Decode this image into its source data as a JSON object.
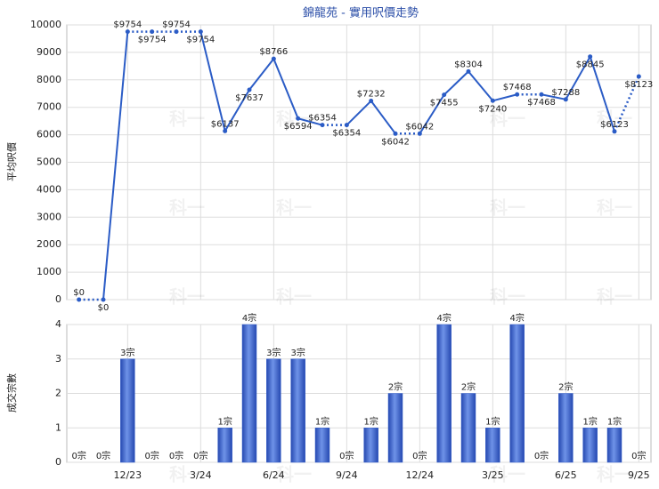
{
  "chart_data": [
    {
      "type": "line",
      "title": "錦龍苑 - 實用呎價走勢",
      "y_label": "平均呎價",
      "color": "#2b5cc6",
      "values": [
        0,
        0,
        9754,
        9754,
        9754,
        9754,
        6137,
        7637,
        8766,
        6594,
        6354,
        6354,
        7232,
        6042,
        6042,
        7455,
        8304,
        7240,
        7468,
        7468,
        7288,
        8845,
        6123,
        8123
      ],
      "value_labels": [
        "$0",
        "$0",
        "$9754",
        "$9754",
        "$9754",
        "$9754",
        "$6137",
        "$7637",
        "$8766",
        "$6594",
        "$6354",
        "$6354",
        "$7232",
        "$6042",
        "$6042",
        "$7455",
        "$8304",
        "$7240",
        "$7468",
        "$7468",
        "$7288",
        "$8845",
        "$6123",
        "$8123"
      ],
      "ylim": [
        0,
        10000
      ],
      "yticks": [
        0,
        1000,
        2000,
        3000,
        4000,
        5000,
        6000,
        7000,
        8000,
        9000,
        10000
      ],
      "grid": true,
      "watermark": "科一"
    },
    {
      "type": "bar",
      "y_label": "成交宗數",
      "color": "#3560cc",
      "categories": [
        null,
        null,
        "12/23",
        null,
        null,
        "3/24",
        null,
        null,
        "6/24",
        null,
        null,
        "9/24",
        null,
        null,
        "12/24",
        null,
        null,
        "3/25",
        null,
        null,
        "6/25",
        null,
        null,
        "9/25"
      ],
      "values": [
        0,
        0,
        3,
        0,
        0,
        0,
        1,
        4,
        3,
        3,
        1,
        0,
        1,
        2,
        0,
        4,
        2,
        1,
        4,
        0,
        2,
        1,
        1,
        0
      ],
      "value_labels": [
        "0宗",
        "0宗",
        "3宗",
        "0宗",
        "0宗",
        "0宗",
        "1宗",
        "4宗",
        "3宗",
        "3宗",
        "1宗",
        "0宗",
        "1宗",
        "2宗",
        "0宗",
        "4宗",
        "2宗",
        "1宗",
        "4宗",
        "0宗",
        "2宗",
        "1宗",
        "1宗",
        "0宗"
      ],
      "ylim": [
        0,
        4
      ],
      "yticks": [
        0,
        1,
        2,
        3,
        4
      ],
      "grid": true
    }
  ]
}
